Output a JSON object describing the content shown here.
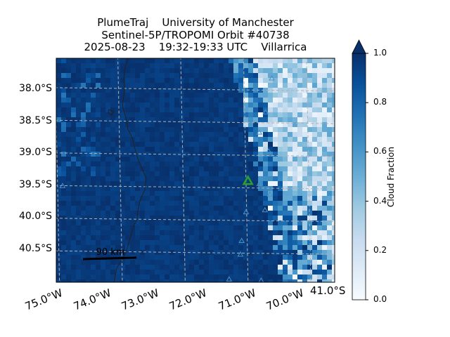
{
  "title": {
    "line1": "PlumeTraj    University of Manchester",
    "line2": "Sentinel-5P/TROPOMI Orbit #40738",
    "line3": "2025-08-23    19:32-19:33 UTC    Villarrica"
  },
  "map": {
    "extent_lon": [
      -74.98,
      -70.55
    ],
    "extent_lat": [
      -40.98,
      -37.55
    ],
    "lat_labels": [
      "38.0°S",
      "38.5°S",
      "39.0°S",
      "39.5°S",
      "40.0°S",
      "40.5°S"
    ],
    "lon_labels": [
      "75.0°W",
      "74.0°W",
      "73.0°W",
      "72.0°W",
      "71.0°W",
      "70.0°W"
    ],
    "corner_label": "41.0°S",
    "scale_bar": {
      "label": "90 km"
    },
    "volcano": {
      "name": "Villarrica",
      "lon": -71.93,
      "lat": -39.42,
      "color": "#2ca02c"
    },
    "other_volcanoes": [
      {
        "lon": -71.55,
        "lat": -37.85
      },
      {
        "lon": -71.65,
        "lat": -38.37
      },
      {
        "lon": -71.75,
        "lat": -38.68
      },
      {
        "lon": -71.6,
        "lat": -38.97
      },
      {
        "lon": -71.75,
        "lat": -39.47
      },
      {
        "lon": -71.58,
        "lat": -39.63
      },
      {
        "lon": -71.66,
        "lat": -39.87
      },
      {
        "lon": -71.96,
        "lat": -39.9
      },
      {
        "lon": -72.03,
        "lat": -40.34
      },
      {
        "lon": -72.05,
        "lat": -40.55
      },
      {
        "lon": -72.23,
        "lat": -40.93
      },
      {
        "lon": -71.72,
        "lat": -40.95
      },
      {
        "lon": -74.88,
        "lat": -39.5
      }
    ],
    "field": "Cloud Fraction",
    "colors": {
      "low": "#f7fbff",
      "high": "#08306b",
      "grid": "#b0b0b0",
      "coast": "#222222"
    }
  },
  "colorbar": {
    "label": "Cloud Fraction",
    "ticks": [
      "0.0",
      "0.2",
      "0.4",
      "0.6",
      "0.8",
      "1.0"
    ],
    "range": [
      0,
      1
    ]
  }
}
